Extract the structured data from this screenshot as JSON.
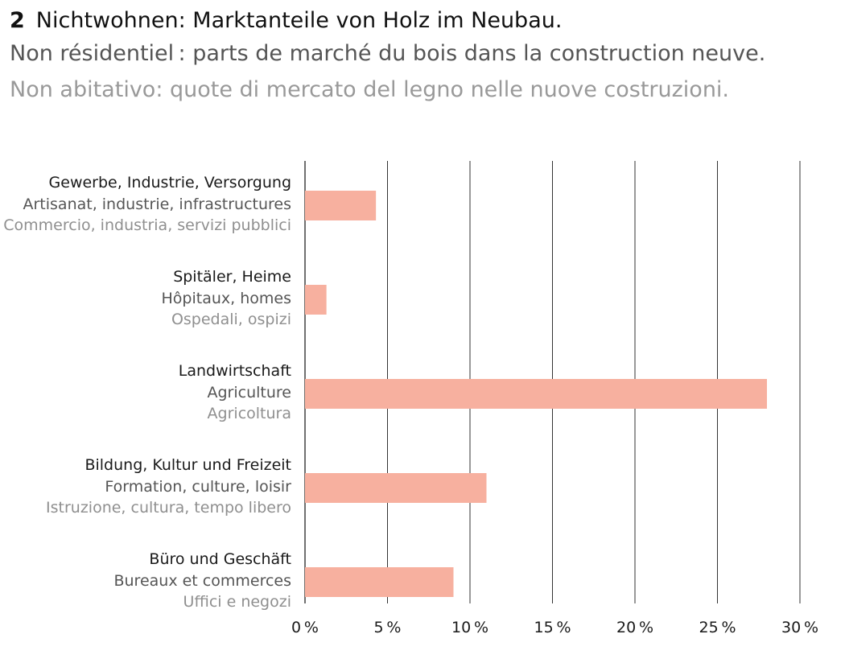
{
  "header": {
    "number": "2",
    "title_de": "Nichtwohnen: Marktanteile von Holz im Neubau.",
    "title_fr": "Non résidentiel : parts de marché du bois dans la construction neuve.",
    "title_it": "Non abitativo: quote di mercato del legno nelle nuove costruzioni."
  },
  "chart_data": {
    "type": "bar",
    "orientation": "horizontal",
    "categories": [
      {
        "de": "Gewerbe, Industrie, Versorgung",
        "fr": "Artisanat, industrie, infrastructures",
        "it": "Commercio, industria, servizi pubblici"
      },
      {
        "de": "Spitäler, Heime",
        "fr": "Hôpitaux, homes",
        "it": "Ospedali, ospizi"
      },
      {
        "de": "Landwirtschaft",
        "fr": "Agriculture",
        "it": "Agricoltura"
      },
      {
        "de": "Bildung, Kultur und Freizeit",
        "fr": "Formation, culture, loisir",
        "it": "Istruzione, cultura, tempo libero"
      },
      {
        "de": "Büro und Geschäft",
        "fr": "Bureaux et commerces",
        "it": "Uffici e negozi"
      }
    ],
    "values": [
      4.3,
      1.3,
      28.0,
      11.0,
      9.0
    ],
    "xlim": [
      0,
      30
    ],
    "xticks": [
      0,
      5,
      10,
      15,
      20,
      25,
      30
    ],
    "xtick_labels": [
      "0 %",
      "5 %",
      "10 %",
      "15 %",
      "20 %",
      "25 %",
      "30 %"
    ],
    "grid": "vertical",
    "bar_color": "#f7b09f",
    "grid_color": "#333333"
  }
}
